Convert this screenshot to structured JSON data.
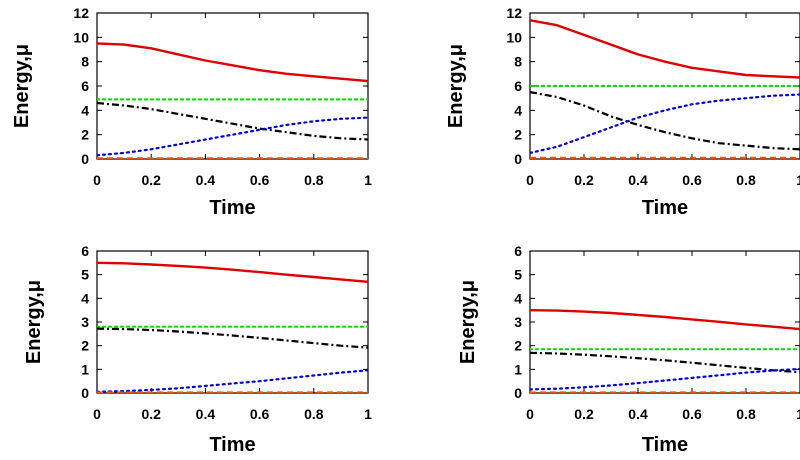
{
  "chart_data": [
    {
      "type": "line",
      "xlabel": "Time",
      "ylabel": "Energy,μ",
      "xlim": [
        0,
        1
      ],
      "ylim": [
        0,
        12
      ],
      "xticks": [
        "0",
        "0.2",
        "0.4",
        "0.6",
        "0.8",
        "1"
      ],
      "yticks": [
        "0",
        "2",
        "4",
        "6",
        "8",
        "10",
        "12"
      ],
      "x": [
        0,
        0.1,
        0.2,
        0.3,
        0.4,
        0.5,
        0.6,
        0.7,
        0.8,
        0.9,
        1.0
      ],
      "series": [
        {
          "style": "solid",
          "color": "#e00000",
          "values": [
            9.5,
            9.4,
            9.1,
            8.6,
            8.1,
            7.7,
            7.3,
            7.0,
            6.8,
            6.6,
            6.4
          ]
        },
        {
          "style": "dotted",
          "color": "#00e000",
          "values": [
            4.9,
            4.9,
            4.9,
            4.9,
            4.9,
            4.9,
            4.9,
            4.9,
            4.9,
            4.9,
            4.9
          ]
        },
        {
          "style": "dashdot",
          "color": "#000000",
          "values": [
            4.6,
            4.4,
            4.1,
            3.7,
            3.3,
            2.9,
            2.5,
            2.2,
            1.9,
            1.7,
            1.6
          ]
        },
        {
          "style": "dotted",
          "color": "#0000e0",
          "values": [
            0.3,
            0.5,
            0.8,
            1.2,
            1.6,
            2.0,
            2.4,
            2.8,
            3.1,
            3.3,
            3.4
          ]
        },
        {
          "style": "dashed",
          "color": "#ff5000",
          "values": [
            0.05,
            0.05,
            0.05,
            0.05,
            0.05,
            0.05,
            0.05,
            0.05,
            0.05,
            0.05,
            0.05
          ]
        }
      ]
    },
    {
      "type": "line",
      "xlabel": "Time",
      "ylabel": "Energy,μ",
      "xlim": [
        0,
        1
      ],
      "ylim": [
        0,
        12
      ],
      "xticks": [
        "0",
        "0.2",
        "0.4",
        "0.6",
        "0.8",
        "1"
      ],
      "yticks": [
        "0",
        "2",
        "4",
        "6",
        "8",
        "10",
        "12"
      ],
      "x": [
        0,
        0.1,
        0.2,
        0.3,
        0.4,
        0.5,
        0.6,
        0.7,
        0.8,
        0.9,
        1.0
      ],
      "series": [
        {
          "style": "solid",
          "color": "#e00000",
          "values": [
            11.4,
            11.0,
            10.2,
            9.4,
            8.6,
            8.0,
            7.5,
            7.2,
            6.9,
            6.8,
            6.7
          ]
        },
        {
          "style": "dotted",
          "color": "#00e000",
          "values": [
            6.0,
            6.0,
            6.0,
            6.0,
            6.0,
            6.0,
            6.0,
            6.0,
            6.0,
            6.0,
            6.0
          ]
        },
        {
          "style": "dashdot",
          "color": "#000000",
          "values": [
            5.5,
            5.1,
            4.4,
            3.5,
            2.8,
            2.2,
            1.7,
            1.3,
            1.1,
            0.9,
            0.8
          ]
        },
        {
          "style": "dotted",
          "color": "#0000e0",
          "values": [
            0.5,
            1.0,
            1.8,
            2.6,
            3.4,
            4.0,
            4.5,
            4.8,
            5.0,
            5.2,
            5.3
          ]
        },
        {
          "style": "dashed",
          "color": "#ff5000",
          "values": [
            0.1,
            0.1,
            0.1,
            0.1,
            0.1,
            0.1,
            0.1,
            0.1,
            0.1,
            0.1,
            0.1
          ]
        }
      ]
    },
    {
      "type": "line",
      "xlabel": "Time",
      "ylabel": "Energy,μ",
      "xlim": [
        0,
        1
      ],
      "ylim": [
        0,
        6
      ],
      "xticks": [
        "0",
        "0.2",
        "0.4",
        "0.6",
        "0.8",
        "1"
      ],
      "yticks": [
        "0",
        "1",
        "2",
        "3",
        "4",
        "5",
        "6"
      ],
      "x": [
        0,
        0.1,
        0.2,
        0.3,
        0.4,
        0.5,
        0.6,
        0.7,
        0.8,
        0.9,
        1.0
      ],
      "series": [
        {
          "style": "solid",
          "color": "#e00000",
          "values": [
            5.5,
            5.48,
            5.43,
            5.37,
            5.3,
            5.21,
            5.11,
            5.0,
            4.9,
            4.8,
            4.7
          ]
        },
        {
          "style": "dotted",
          "color": "#00e000",
          "values": [
            2.8,
            2.8,
            2.8,
            2.8,
            2.8,
            2.8,
            2.8,
            2.8,
            2.8,
            2.8,
            2.8
          ]
        },
        {
          "style": "dashdot",
          "color": "#000000",
          "values": [
            2.72,
            2.7,
            2.66,
            2.6,
            2.52,
            2.43,
            2.33,
            2.22,
            2.11,
            2.0,
            1.92
          ]
        },
        {
          "style": "dotted",
          "color": "#0000e0",
          "values": [
            0.05,
            0.08,
            0.13,
            0.2,
            0.3,
            0.4,
            0.5,
            0.62,
            0.74,
            0.86,
            0.96
          ]
        },
        {
          "style": "dashed",
          "color": "#ff5000",
          "values": [
            0.02,
            0.02,
            0.02,
            0.02,
            0.02,
            0.02,
            0.02,
            0.02,
            0.02,
            0.02,
            0.02
          ]
        }
      ]
    },
    {
      "type": "line",
      "xlabel": "Time",
      "ylabel": "Energy,μ",
      "xlim": [
        0,
        1
      ],
      "ylim": [
        0,
        6
      ],
      "xticks": [
        "0",
        "0.2",
        "0.4",
        "0.6",
        "0.8",
        "1"
      ],
      "yticks": [
        "0",
        "1",
        "2",
        "3",
        "4",
        "5",
        "6"
      ],
      "x": [
        0,
        0.1,
        0.2,
        0.3,
        0.4,
        0.5,
        0.6,
        0.7,
        0.8,
        0.9,
        1.0
      ],
      "series": [
        {
          "style": "solid",
          "color": "#e00000",
          "values": [
            3.5,
            3.48,
            3.44,
            3.38,
            3.3,
            3.21,
            3.11,
            3.01,
            2.9,
            2.8,
            2.7
          ]
        },
        {
          "style": "dotted",
          "color": "#00e000",
          "values": [
            1.85,
            1.85,
            1.85,
            1.85,
            1.85,
            1.85,
            1.85,
            1.85,
            1.85,
            1.85,
            1.85
          ]
        },
        {
          "style": "dashdot",
          "color": "#000000",
          "values": [
            1.7,
            1.67,
            1.62,
            1.55,
            1.47,
            1.38,
            1.28,
            1.17,
            1.06,
            0.96,
            0.88
          ]
        },
        {
          "style": "dotted",
          "color": "#0000e0",
          "values": [
            0.15,
            0.18,
            0.24,
            0.32,
            0.42,
            0.53,
            0.64,
            0.75,
            0.86,
            0.95,
            1.02
          ]
        },
        {
          "style": "dashed",
          "color": "#ff5000",
          "values": [
            0.02,
            0.02,
            0.02,
            0.02,
            0.02,
            0.02,
            0.02,
            0.02,
            0.02,
            0.02,
            0.02
          ]
        }
      ]
    }
  ]
}
